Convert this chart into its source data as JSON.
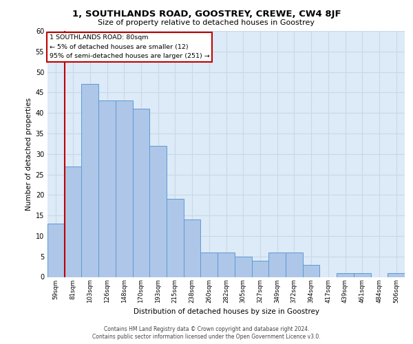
{
  "title1": "1, SOUTHLANDS ROAD, GOOSTREY, CREWE, CW4 8JF",
  "title2": "Size of property relative to detached houses in Goostrey",
  "xlabel": "Distribution of detached houses by size in Goostrey",
  "ylabel": "Number of detached properties",
  "categories": [
    "59sqm",
    "81sqm",
    "103sqm",
    "126sqm",
    "148sqm",
    "170sqm",
    "193sqm",
    "215sqm",
    "238sqm",
    "260sqm",
    "282sqm",
    "305sqm",
    "327sqm",
    "349sqm",
    "372sqm",
    "394sqm",
    "417sqm",
    "439sqm",
    "461sqm",
    "484sqm",
    "506sqm"
  ],
  "values": [
    13,
    27,
    47,
    43,
    43,
    41,
    32,
    19,
    14,
    6,
    6,
    5,
    4,
    6,
    6,
    3,
    0,
    1,
    1,
    0,
    1
  ],
  "bar_color": "#aec6e8",
  "bar_edge_color": "#5b9bd5",
  "highlight_bar_index": 1,
  "highlight_color": "#c00000",
  "annotation_line1": "1 SOUTHLANDS ROAD: 80sqm",
  "annotation_line2": "← 5% of detached houses are smaller (12)",
  "annotation_line3": "95% of semi-detached houses are larger (251) →",
  "annotation_box_color": "#ffffff",
  "annotation_box_edge_color": "#c00000",
  "grid_color": "#c8d8e8",
  "background_color": "#ddeaf7",
  "ylim": [
    0,
    60
  ],
  "yticks": [
    0,
    5,
    10,
    15,
    20,
    25,
    30,
    35,
    40,
    45,
    50,
    55,
    60
  ],
  "footer_line1": "Contains HM Land Registry data © Crown copyright and database right 2024.",
  "footer_line2": "Contains public sector information licensed under the Open Government Licence v3.0."
}
